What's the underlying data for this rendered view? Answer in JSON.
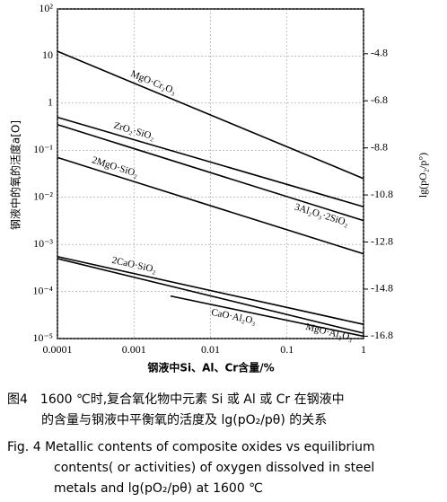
{
  "chart_data": {
    "type": "line",
    "x_label": "钢液中Si、Al、Cr含量/%",
    "y_label": "钢液中的氧的活度a[O]",
    "y2_label": "lg(pO₂/p°)",
    "xlog": true,
    "ylog": true,
    "grid": true,
    "color": "#000000",
    "xlim": [
      0.0001,
      1
    ],
    "xticks": [
      0.0001,
      0.001,
      0.01,
      0.1,
      1
    ],
    "ylim": [
      1e-05,
      100
    ],
    "yticks": [
      {
        "value": 1e-05,
        "label": "10⁻⁵"
      },
      {
        "value": 0.0001,
        "label": "10⁻⁴"
      },
      {
        "value": 0.001,
        "label": "10⁻³"
      },
      {
        "value": 0.01,
        "label": "10⁻²"
      },
      {
        "value": 0.1,
        "label": "10⁻¹"
      },
      1,
      10,
      {
        "value": 100,
        "label": "10²"
      }
    ],
    "y2lim": [
      -16.9,
      -2.9
    ],
    "y2ticks": [
      -4.8,
      -6.8,
      -8.8,
      -10.8,
      -12.8,
      -14.8,
      -16.8
    ],
    "series": [
      {
        "name": "MgO·Cr₂O₃",
        "x": [
          0.0001,
          1
        ],
        "values": [
          12.6,
          0.025
        ]
      },
      {
        "name": "ZrO₂·SiO₂",
        "x": [
          0.0001,
          1
        ],
        "values": [
          0.5,
          0.0063
        ]
      },
      {
        "name": "3Al₂O₃·2SiO₂",
        "x": [
          0.0001,
          1
        ],
        "values": [
          0.35,
          0.0032
        ]
      },
      {
        "name": "2MgO·SiO₂",
        "x": [
          0.0001,
          1
        ],
        "values": [
          0.07,
          0.00063
        ]
      },
      {
        "name": "2CaO·SiO₂",
        "x": [
          0.0001,
          1
        ],
        "values": [
          0.00055,
          2e-05
        ]
      },
      {
        "name": "CaO·Al₂O₃",
        "x": [
          0.003,
          1
        ],
        "values": [
          8e-05,
          1.12e-05
        ]
      },
      {
        "name": "MgO·Al₂O₃",
        "x": [
          0.0001,
          1
        ],
        "values": [
          0.0005,
          1.3e-05
        ]
      }
    ]
  },
  "caption": {
    "zh": [
      "图4　1600 ℃时,复合氧化物中元素 Si 或 Al 或 Cr 在钢液中",
      "的含量与钢液中平衡氧的活度及 lg(pO₂/pθ) 的关系"
    ],
    "en": [
      "Fig. 4  Metallic contents of composite oxides vs equilibrium",
      "contents( or activities) of oxygen dissolved in steel",
      "metals and lg(pO₂/pθ) at 1600 ℃"
    ]
  }
}
